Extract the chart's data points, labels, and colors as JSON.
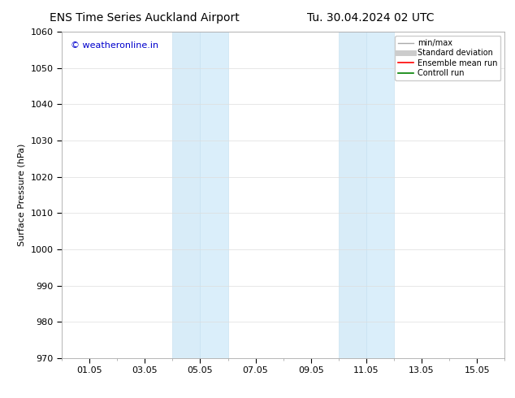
{
  "title_left": "ENS Time Series Auckland Airport",
  "title_right": "Tu. 30.04.2024 02 UTC",
  "ylabel": "Surface Pressure (hPa)",
  "ylim": [
    970,
    1060
  ],
  "yticks": [
    970,
    980,
    990,
    1000,
    1010,
    1020,
    1030,
    1040,
    1050,
    1060
  ],
  "xtick_labels": [
    "01.05",
    "03.05",
    "05.05",
    "07.05",
    "09.05",
    "11.05",
    "13.05",
    "15.05"
  ],
  "xtick_positions": [
    1,
    3,
    5,
    7,
    9,
    11,
    13,
    15
  ],
  "xlim": [
    0,
    16
  ],
  "shaded_regions": [
    {
      "x_start": 4.0,
      "x_end": 5.0,
      "color": "#d8ecf8"
    },
    {
      "x_start": 5.0,
      "x_end": 6.0,
      "color": "#daeefa"
    },
    {
      "x_start": 10.0,
      "x_end": 11.0,
      "color": "#d8ecf8"
    },
    {
      "x_start": 11.0,
      "x_end": 12.0,
      "color": "#daeefa"
    }
  ],
  "shaded_edge_color": "#c2dff0",
  "copyright_text": "© weatheronline.in",
  "copyright_color": "#0000cc",
  "legend_items": [
    {
      "label": "min/max",
      "color": "#aaaaaa",
      "lw": 1.0,
      "linestyle": "-"
    },
    {
      "label": "Standard deviation",
      "color": "#cccccc",
      "lw": 5,
      "linestyle": "-"
    },
    {
      "label": "Ensemble mean run",
      "color": "#ff0000",
      "lw": 1.2,
      "linestyle": "-"
    },
    {
      "label": "Controll run",
      "color": "#008000",
      "lw": 1.2,
      "linestyle": "-"
    }
  ],
  "bg_color": "#ffffff",
  "grid_color": "#dddddd",
  "title_fontsize": 10,
  "axis_fontsize": 8,
  "copyright_fontsize": 8,
  "tick_fontsize": 8
}
